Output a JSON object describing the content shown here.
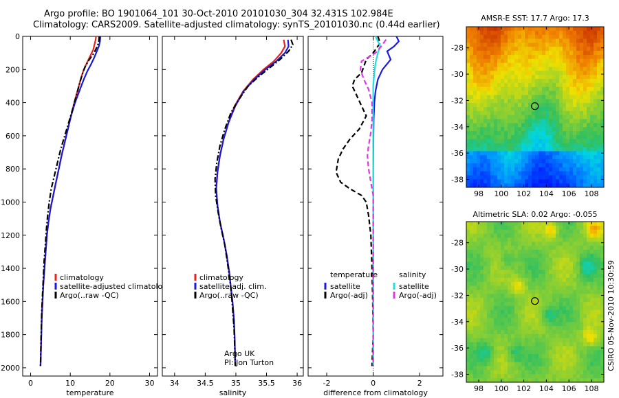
{
  "titles": {
    "line1": "Argo profile: BO 1901064_101 30-Oct-2010 20101030_304 32.431S 102.984E",
    "line2": "Climatology: CARS2009. Satellite-adjusted climatology: synTS_20101030.nc (0.44d earlier)"
  },
  "side_text": "CSIRO 05-Nov-2010 10:30:59",
  "colors": {
    "climatology": "#e8231e",
    "satellite_adj": "#1a1adc",
    "argo": "#000000",
    "diff_temp_sat": "#1a1adc",
    "diff_sal_sat": "#22dede",
    "diff_sal_argo": "#e236e6"
  },
  "chart_data": [
    {
      "type": "line",
      "panel": "temperature",
      "xlabel": "temperature",
      "ylabel": "",
      "xlim": [
        -2,
        32
      ],
      "ylim": [
        0,
        2050
      ],
      "y_reversed": true,
      "xticks": [
        0,
        10,
        20,
        30
      ],
      "yticks": [
        0,
        200,
        400,
        600,
        800,
        1000,
        1200,
        1400,
        1600,
        1800,
        2000
      ],
      "legend": [
        "climatology",
        "satellite-adjusted climatolog",
        "Argo(..raw -QC)"
      ],
      "series": [
        {
          "name": "climatology",
          "style": "solid",
          "color_key": "climatology",
          "points": [
            [
              16.5,
              0
            ],
            [
              16.4,
              20
            ],
            [
              16.2,
              40
            ],
            [
              15.8,
              80
            ],
            [
              15.0,
              120
            ],
            [
              14.2,
              160
            ],
            [
              13.4,
              200
            ],
            [
              12.6,
              260
            ],
            [
              11.8,
              330
            ],
            [
              11.0,
              400
            ],
            [
              10.2,
              480
            ],
            [
              9.4,
              560
            ],
            [
              8.6,
              640
            ],
            [
              7.8,
              720
            ],
            [
              7.1,
              800
            ],
            [
              6.4,
              880
            ],
            [
              5.7,
              960
            ],
            [
              5.0,
              1040
            ],
            [
              4.5,
              1120
            ],
            [
              4.1,
              1200
            ],
            [
              3.8,
              1300
            ],
            [
              3.5,
              1400
            ],
            [
              3.2,
              1500
            ],
            [
              3.0,
              1600
            ],
            [
              2.8,
              1700
            ],
            [
              2.7,
              1800
            ],
            [
              2.6,
              1900
            ],
            [
              2.5,
              1990
            ]
          ]
        },
        {
          "name": "satellite-adjusted climatolog",
          "style": "solid",
          "color_key": "satellite_adj",
          "points": [
            [
              17.6,
              0
            ],
            [
              17.5,
              30
            ],
            [
              17.2,
              60
            ],
            [
              16.7,
              90
            ],
            [
              16.0,
              130
            ],
            [
              15.2,
              170
            ],
            [
              14.3,
              210
            ],
            [
              13.4,
              260
            ],
            [
              12.3,
              330
            ],
            [
              11.2,
              400
            ],
            [
              10.2,
              480
            ],
            [
              9.4,
              560
            ],
            [
              8.6,
              640
            ],
            [
              7.8,
              720
            ],
            [
              7.1,
              800
            ],
            [
              6.4,
              880
            ],
            [
              5.7,
              960
            ],
            [
              5.0,
              1040
            ],
            [
              4.5,
              1120
            ],
            [
              4.1,
              1200
            ],
            [
              3.8,
              1300
            ],
            [
              3.5,
              1400
            ],
            [
              3.2,
              1500
            ],
            [
              3.0,
              1600
            ],
            [
              2.8,
              1700
            ],
            [
              2.7,
              1800
            ],
            [
              2.6,
              1900
            ],
            [
              2.5,
              1990
            ]
          ]
        },
        {
          "name": "Argo(..raw -QC)",
          "style": "dashdot",
          "color_key": "argo",
          "points": [
            [
              17.3,
              0
            ],
            [
              17.2,
              30
            ],
            [
              16.8,
              60
            ],
            [
              16.0,
              100
            ],
            [
              14.8,
              140
            ],
            [
              13.8,
              180
            ],
            [
              13.0,
              230
            ],
            [
              12.3,
              290
            ],
            [
              11.5,
              360
            ],
            [
              10.6,
              440
            ],
            [
              9.6,
              520
            ],
            [
              8.6,
              600
            ],
            [
              7.6,
              680
            ],
            [
              6.8,
              760
            ],
            [
              6.0,
              840
            ],
            [
              5.2,
              920
            ],
            [
              4.7,
              1000
            ],
            [
              4.3,
              1080
            ],
            [
              4.0,
              1160
            ],
            [
              3.7,
              1260
            ],
            [
              3.4,
              1360
            ],
            [
              3.2,
              1460
            ],
            [
              3.0,
              1560
            ],
            [
              2.8,
              1660
            ],
            [
              2.7,
              1760
            ],
            [
              2.6,
              1860
            ],
            [
              2.5,
              1990
            ]
          ]
        }
      ]
    },
    {
      "type": "line",
      "panel": "salinity",
      "xlabel": "salinity",
      "ylabel": "",
      "xlim": [
        33.8,
        36.1
      ],
      "ylim": [
        0,
        2050
      ],
      "y_reversed": true,
      "xticks": [
        34,
        34.5,
        35,
        35.5,
        36
      ],
      "legend": [
        "climatology",
        "satellite adj. clim.",
        "Argo(..raw -QC)"
      ],
      "annotations": [
        "Argo UK",
        "PI: Jon Turton"
      ],
      "series": [
        {
          "name": "climatology",
          "style": "solid",
          "color_key": "climatology",
          "points": [
            [
              35.78,
              20
            ],
            [
              35.8,
              60
            ],
            [
              35.74,
              100
            ],
            [
              35.62,
              150
            ],
            [
              35.45,
              200
            ],
            [
              35.28,
              260
            ],
            [
              35.12,
              330
            ],
            [
              34.98,
              420
            ],
            [
              34.88,
              520
            ],
            [
              34.8,
              620
            ],
            [
              34.74,
              720
            ],
            [
              34.7,
              820
            ],
            [
              34.68,
              920
            ],
            [
              34.7,
              1020
            ],
            [
              34.74,
              1120
            ],
            [
              34.8,
              1220
            ],
            [
              34.85,
              1320
            ],
            [
              34.89,
              1420
            ],
            [
              34.92,
              1520
            ],
            [
              34.95,
              1620
            ],
            [
              34.97,
              1720
            ],
            [
              34.98,
              1820
            ],
            [
              34.99,
              1990
            ]
          ]
        },
        {
          "name": "satellite adj. clim.",
          "style": "solid",
          "color_key": "satellite_adj",
          "points": [
            [
              35.85,
              20
            ],
            [
              35.86,
              60
            ],
            [
              35.8,
              100
            ],
            [
              35.66,
              150
            ],
            [
              35.48,
              200
            ],
            [
              35.3,
              260
            ],
            [
              35.13,
              330
            ],
            [
              34.99,
              420
            ],
            [
              34.88,
              520
            ],
            [
              34.8,
              620
            ],
            [
              34.74,
              720
            ],
            [
              34.7,
              820
            ],
            [
              34.68,
              920
            ],
            [
              34.7,
              1020
            ],
            [
              34.74,
              1120
            ],
            [
              34.8,
              1220
            ],
            [
              34.85,
              1320
            ],
            [
              34.89,
              1420
            ],
            [
              34.92,
              1520
            ],
            [
              34.95,
              1620
            ],
            [
              34.97,
              1720
            ],
            [
              34.98,
              1820
            ],
            [
              34.99,
              1990
            ]
          ]
        },
        {
          "name": "Argo(..raw -QC)",
          "style": "dashdot",
          "color_key": "argo",
          "points": [
            [
              35.9,
              20
            ],
            [
              35.93,
              50
            ],
            [
              35.86,
              90
            ],
            [
              35.72,
              140
            ],
            [
              35.55,
              190
            ],
            [
              35.38,
              240
            ],
            [
              35.2,
              300
            ],
            [
              35.05,
              380
            ],
            [
              34.92,
              460
            ],
            [
              34.82,
              560
            ],
            [
              34.74,
              660
            ],
            [
              34.69,
              760
            ],
            [
              34.66,
              860
            ],
            [
              34.67,
              960
            ],
            [
              34.71,
              1060
            ],
            [
              34.76,
              1160
            ],
            [
              34.82,
              1260
            ],
            [
              34.86,
              1360
            ],
            [
              34.9,
              1460
            ],
            [
              34.93,
              1560
            ],
            [
              34.95,
              1660
            ],
            [
              34.97,
              1760
            ],
            [
              34.98,
              1860
            ],
            [
              34.99,
              1990
            ]
          ]
        }
      ]
    },
    {
      "type": "line",
      "panel": "difference",
      "xlabel": "difference from climatology",
      "ylabel": "",
      "xlim": [
        -2.8,
        3.0
      ],
      "ylim": [
        0,
        2050
      ],
      "y_reversed": true,
      "xticks": [
        -2,
        0,
        2
      ],
      "legend_groups": [
        {
          "title": "temperature",
          "items": [
            "satellite",
            "Argo(-adj)"
          ]
        },
        {
          "title": "salinity",
          "items": [
            "satellite",
            "Argo(-adj)"
          ]
        }
      ],
      "series": [
        {
          "name": "temperature satellite",
          "style": "solid",
          "color_key": "diff_temp_sat",
          "points": [
            [
              1.0,
              0
            ],
            [
              1.1,
              30
            ],
            [
              0.9,
              60
            ],
            [
              0.6,
              90
            ],
            [
              0.75,
              140
            ],
            [
              0.4,
              200
            ],
            [
              0.2,
              260
            ],
            [
              0.1,
              330
            ],
            [
              0.05,
              400
            ],
            [
              0.02,
              500
            ],
            [
              0.01,
              600
            ],
            [
              0.0,
              800
            ],
            [
              0.0,
              1000
            ],
            [
              0.0,
              1990
            ]
          ]
        },
        {
          "name": "temperature Argo(-adj)",
          "style": "dashed",
          "color_key": "argo",
          "points": [
            [
              0.2,
              0
            ],
            [
              0.3,
              40
            ],
            [
              0.0,
              100
            ],
            [
              -0.3,
              140
            ],
            [
              -0.4,
              180
            ],
            [
              -0.5,
              220
            ],
            [
              -0.8,
              260
            ],
            [
              -0.9,
              300
            ],
            [
              -0.7,
              360
            ],
            [
              -0.5,
              420
            ],
            [
              -0.3,
              480
            ],
            [
              -0.6,
              560
            ],
            [
              -1.0,
              620
            ],
            [
              -1.3,
              680
            ],
            [
              -1.5,
              740
            ],
            [
              -1.6,
              820
            ],
            [
              -1.4,
              880
            ],
            [
              -1.0,
              920
            ],
            [
              -0.5,
              960
            ],
            [
              -0.3,
              1000
            ],
            [
              -0.2,
              1080
            ],
            [
              -0.1,
              1200
            ],
            [
              -0.05,
              1400
            ],
            [
              -0.02,
              1600
            ],
            [
              0.0,
              1800
            ],
            [
              -0.05,
              1990
            ]
          ]
        },
        {
          "name": "salinity satellite",
          "style": "solid",
          "color_key": "diff_sal_sat",
          "points": [
            [
              0.1,
              0
            ],
            [
              0.2,
              30
            ],
            [
              0.3,
              60
            ],
            [
              0.2,
              100
            ],
            [
              0.1,
              160
            ],
            [
              0.05,
              220
            ],
            [
              0.0,
              300
            ],
            [
              0.0,
              1990
            ]
          ]
        },
        {
          "name": "salinity Argo(-adj)",
          "style": "dashed",
          "color_key": "diff_sal_argo",
          "points": [
            [
              0.55,
              20
            ],
            [
              0.35,
              60
            ],
            [
              0.1,
              100
            ],
            [
              -0.5,
              150
            ],
            [
              -0.55,
              200
            ],
            [
              -0.4,
              260
            ],
            [
              -0.2,
              320
            ],
            [
              -0.05,
              400
            ],
            [
              -0.05,
              500
            ],
            [
              -0.1,
              580
            ],
            [
              -0.2,
              660
            ],
            [
              -0.25,
              720
            ],
            [
              -0.2,
              800
            ],
            [
              -0.1,
              880
            ],
            [
              0.0,
              960
            ],
            [
              0.0,
              1990
            ]
          ]
        }
      ]
    },
    {
      "type": "heatmap",
      "panel": "sst_map",
      "title": "AMSR-E SST: 17.7 Argo: 17.3",
      "xticks": [
        98,
        100,
        102,
        104,
        106,
        108
      ],
      "yticks": [
        -28,
        -30,
        -32,
        -34,
        -36,
        -38
      ],
      "xlim": [
        96.9,
        109.1
      ],
      "ylim": [
        -38.6,
        -26.4
      ],
      "profile_location": [
        102.984,
        -32.431
      ]
    },
    {
      "type": "heatmap",
      "panel": "sla_map",
      "title": "Altimetric SLA: 0.02 Argo: -0.055",
      "xticks": [
        98,
        100,
        102,
        104,
        106,
        108
      ],
      "yticks": [
        -28,
        -30,
        -32,
        -34,
        -36,
        -38
      ],
      "xlim": [
        96.9,
        109.1
      ],
      "ylim": [
        -38.6,
        -26.4
      ],
      "profile_location": [
        102.984,
        -32.431
      ]
    }
  ]
}
